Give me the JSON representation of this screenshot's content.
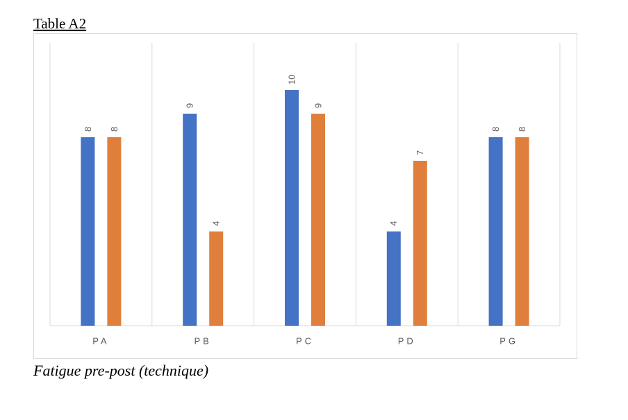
{
  "chart_data": {
    "type": "bar",
    "title": "Table A2",
    "caption": "Fatigue pre-post (technique)",
    "categories": [
      "PA",
      "PB",
      "PC",
      "PD",
      "PG"
    ],
    "series": [
      {
        "color": "#4472c4",
        "values": [
          8,
          9,
          10,
          4,
          8
        ]
      },
      {
        "color": "#e07f3c",
        "values": [
          8,
          4,
          9,
          7,
          8
        ]
      }
    ],
    "ylim": [
      0,
      12
    ]
  }
}
